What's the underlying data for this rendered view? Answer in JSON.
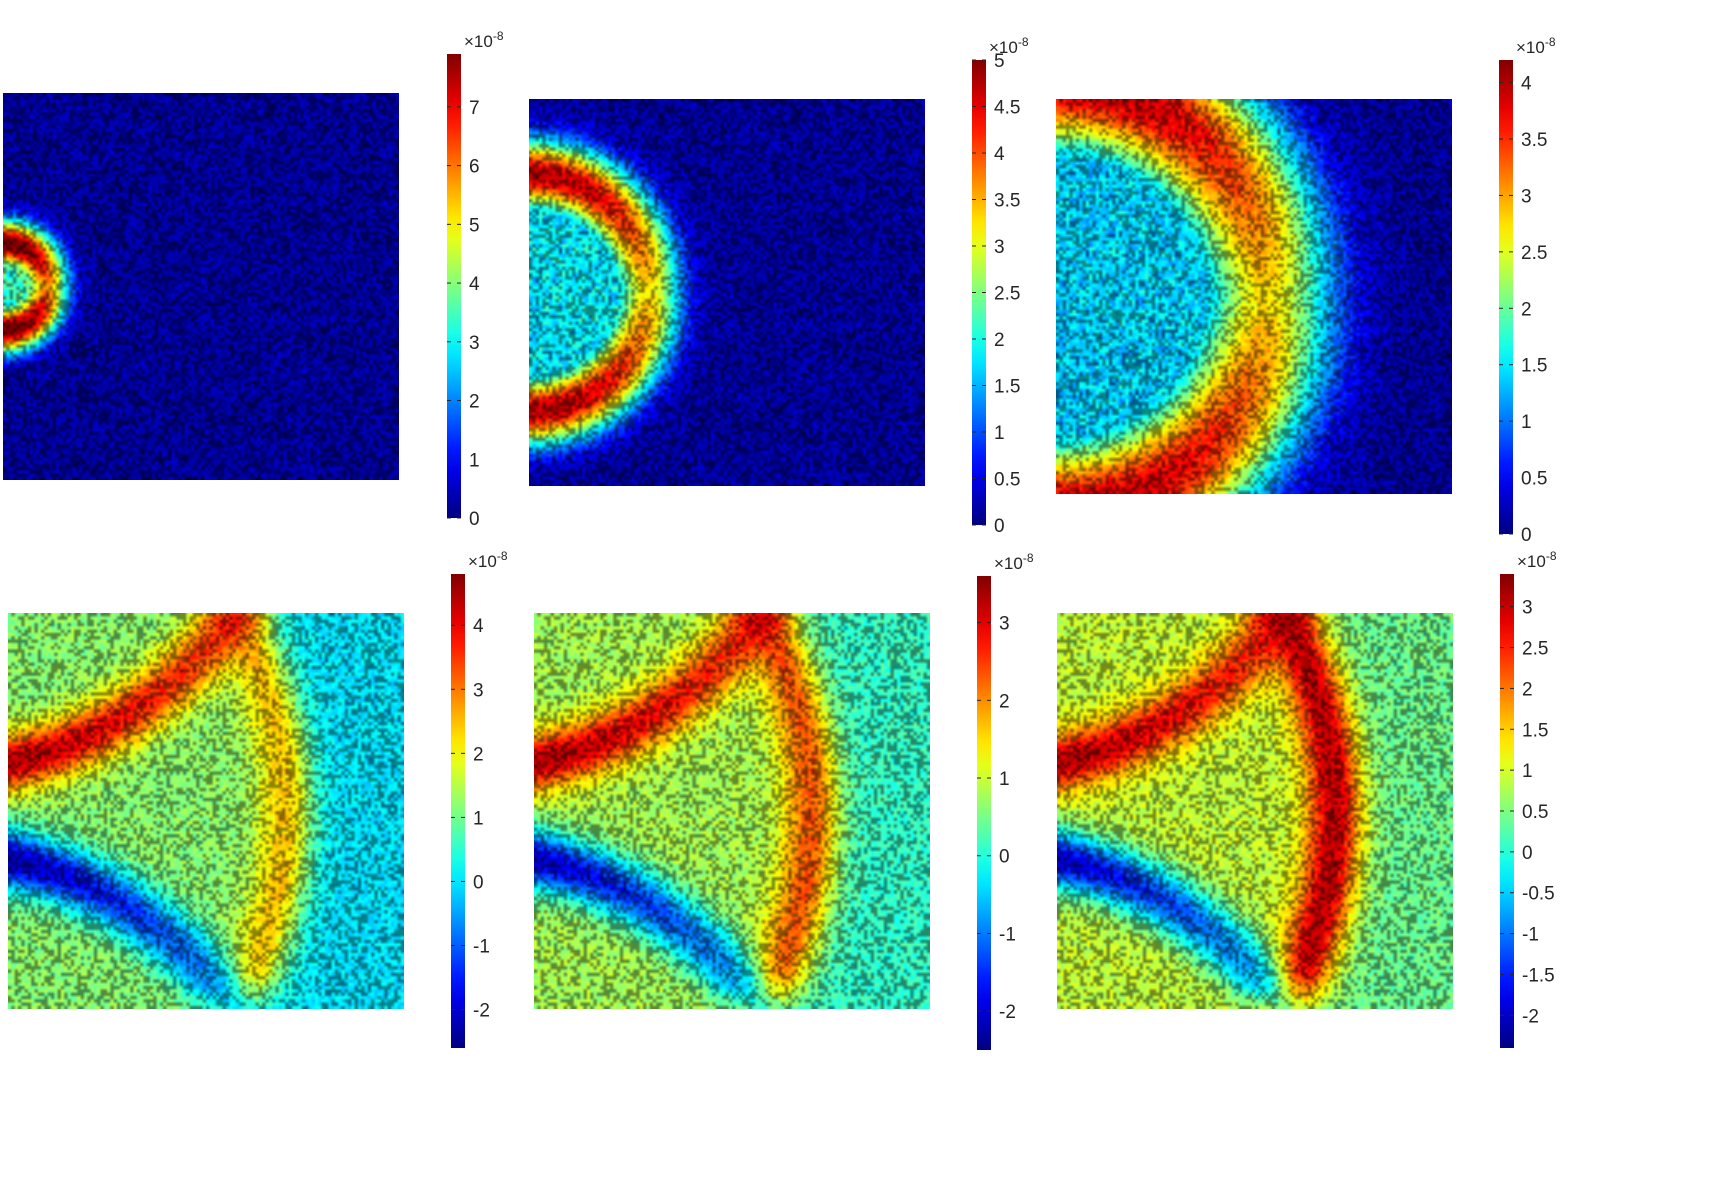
{
  "chart_data": [
    {
      "type": "heatmap",
      "colormap": "jet",
      "colorbar": {
        "exponent_label": "×10",
        "exponent": "-8",
        "min": 0,
        "max": 7.9,
        "ticks": [
          0,
          1,
          2,
          3,
          4,
          5,
          6,
          7
        ],
        "tick_labels": [
          "0",
          "1",
          "2",
          "3",
          "4",
          "5",
          "6",
          "7"
        ]
      },
      "field": {
        "pattern": "ring",
        "source_side": "left",
        "ring_radius": 0.11,
        "ring_thickness": 0.04,
        "peak_value": 7.5,
        "interior_value": 3.5,
        "background_value": 0.3
      }
    },
    {
      "type": "heatmap",
      "colormap": "jet",
      "colorbar": {
        "exponent_label": "×10",
        "exponent": "-8",
        "min": 0,
        "max": 5,
        "ticks": [
          0,
          0.5,
          1,
          1.5,
          2,
          2.5,
          3,
          3.5,
          4,
          4.5,
          5
        ],
        "tick_labels": [
          "0",
          "0.5",
          "1",
          "1.5",
          "2",
          "2.5",
          "3",
          "3.5",
          "4",
          "4.5",
          "5"
        ]
      },
      "field": {
        "pattern": "ring",
        "source_side": "left",
        "ring_radius": 0.3,
        "ring_thickness": 0.06,
        "peak_value": 4.3,
        "interior_value": 1.8,
        "background_value": 0.2
      }
    },
    {
      "type": "heatmap",
      "colormap": "jet",
      "colorbar": {
        "exponent_label": "×10",
        "exponent": "-8",
        "min": 0,
        "max": 4.2,
        "ticks": [
          0,
          0.5,
          1,
          1.5,
          2,
          2.5,
          3,
          3.5,
          4
        ],
        "tick_labels": [
          "0",
          "0.5",
          "1",
          "1.5",
          "2",
          "2.5",
          "3",
          "3.5",
          "4"
        ]
      },
      "field": {
        "pattern": "ring",
        "source_side": "left",
        "ring_radius": 0.53,
        "ring_thickness": 0.12,
        "peak_value": 3.6,
        "interior_value": 1.4,
        "background_value": 0.15
      }
    },
    {
      "type": "heatmap",
      "colormap": "jet",
      "colorbar": {
        "exponent_label": "×10",
        "exponent": "-8",
        "min": -2.6,
        "max": 4.8,
        "ticks": [
          -2,
          -1,
          0,
          1,
          2,
          3,
          4
        ],
        "tick_labels": [
          "-2",
          "-1",
          "0",
          "1",
          "2",
          "3",
          "4"
        ]
      },
      "field": {
        "pattern": "reflected",
        "background_value": 0,
        "interior_value": 1.2,
        "front_value": 2.4,
        "top_band_value": 4.4,
        "bottom_band_value": -2.3
      }
    },
    {
      "type": "heatmap",
      "colormap": "jet",
      "colorbar": {
        "exponent_label": "×10",
        "exponent": "-8",
        "min": -2.5,
        "max": 3.6,
        "ticks": [
          -2,
          -1,
          0,
          1,
          2,
          3
        ],
        "tick_labels": [
          "-2",
          "-1",
          "0",
          "1",
          "2",
          "3"
        ]
      },
      "field": {
        "pattern": "reflected",
        "background_value": 0.1,
        "interior_value": 0.8,
        "front_value": 2.3,
        "top_band_value": 3.3,
        "bottom_band_value": -2.1
      }
    },
    {
      "type": "heatmap",
      "colormap": "jet",
      "colorbar": {
        "exponent_label": "×10",
        "exponent": "-8",
        "min": -2.4,
        "max": 3.4,
        "ticks": [
          -2,
          -1.5,
          -1,
          -0.5,
          0,
          0.5,
          1,
          1.5,
          2,
          2.5,
          3
        ],
        "tick_labels": [
          "-2",
          "-1.5",
          "-1",
          "-0.5",
          "0",
          "0.5",
          "1",
          "1.5",
          "2",
          "2.5",
          "3"
        ]
      },
      "field": {
        "pattern": "reflected",
        "background_value": 0.4,
        "interior_value": 0.9,
        "front_value": 3.0,
        "top_band_value": 3.1,
        "bottom_band_value": -2.0
      }
    }
  ]
}
